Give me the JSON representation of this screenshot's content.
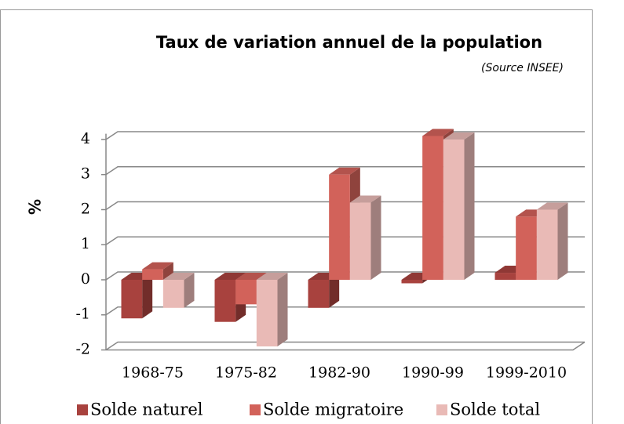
{
  "chart_data": {
    "type": "bar3d",
    "title": "Taux de variation annuel de la population",
    "subtitle": "(Source INSEE)",
    "y_label": "%",
    "categories": [
      "1968-75",
      "1975-82",
      "1982-90",
      "1990-99",
      "1999-2010"
    ],
    "series": [
      {
        "name": "Solde naturel",
        "color": "#a8423e",
        "values": [
          -1.1,
          -1.2,
          -0.8,
          -0.1,
          0.2
        ]
      },
      {
        "name": "Solde migratoire",
        "color": "#d2625a",
        "values": [
          0.3,
          -0.7,
          3.0,
          4.1,
          1.8
        ]
      },
      {
        "name": "Solde total",
        "color": "#e9bab6",
        "values": [
          -0.8,
          -1.9,
          2.2,
          4.0,
          2.0
        ]
      }
    ],
    "ylim": [
      -2,
      4.5
    ],
    "yticks": [
      -2,
      -1,
      0,
      1,
      2,
      3,
      4
    ],
    "grid": true
  }
}
